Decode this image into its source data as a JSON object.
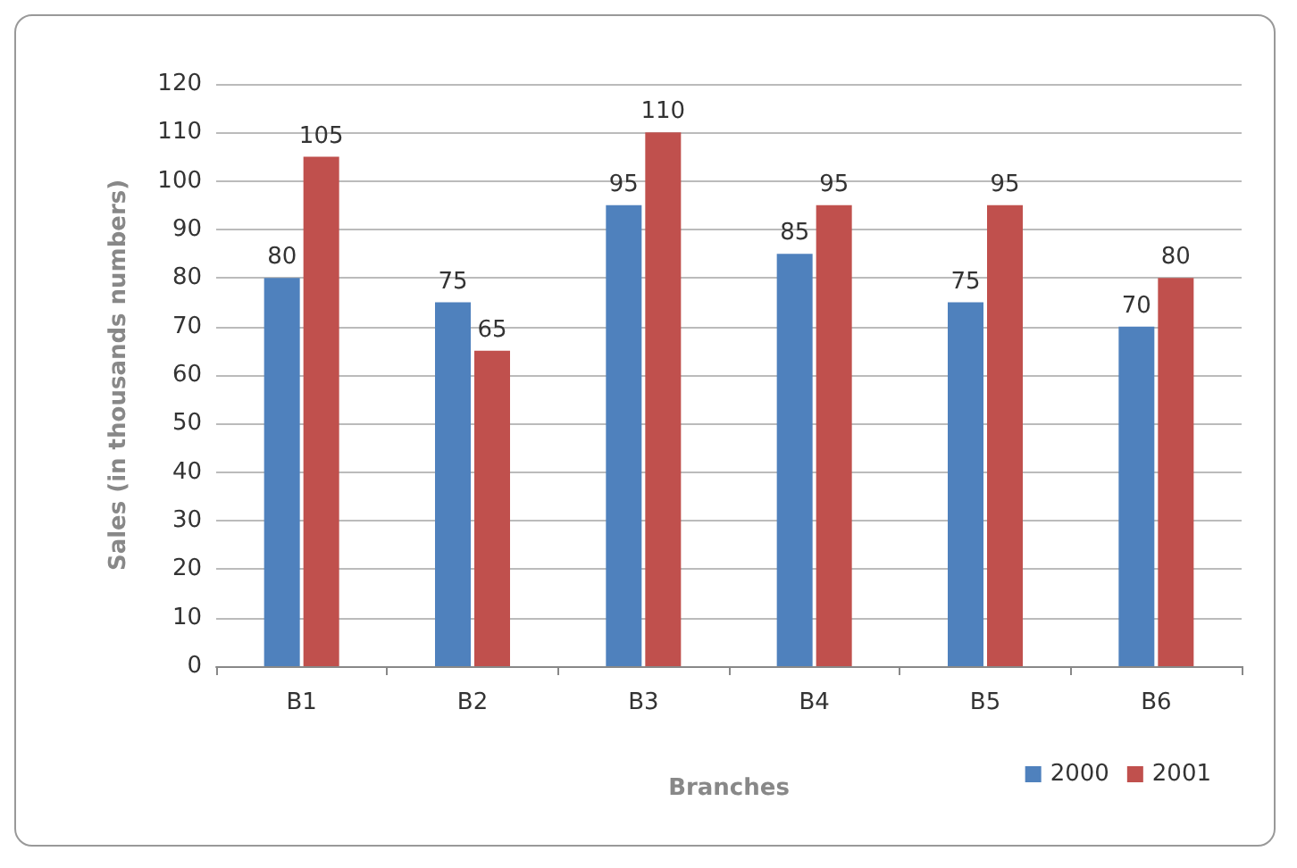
{
  "chart_data": {
    "type": "bar",
    "xlabel": "Branches",
    "ylabel": "Sales (in thousands numbers)",
    "categories": [
      "B1",
      "B2",
      "B3",
      "B4",
      "B5",
      "B6"
    ],
    "series": [
      {
        "name": "2000",
        "color": "#4f81bd",
        "values": [
          80,
          75,
          95,
          85,
          75,
          70
        ]
      },
      {
        "name": "2001",
        "color": "#c0504d",
        "values": [
          105,
          65,
          110,
          95,
          95,
          80
        ]
      }
    ],
    "ylim": [
      0,
      120
    ],
    "yticks": [
      0,
      10,
      20,
      30,
      40,
      50,
      60,
      70,
      80,
      90,
      100,
      110,
      120
    ],
    "grid": "y",
    "legend": "bottom right",
    "data_labels": true
  }
}
